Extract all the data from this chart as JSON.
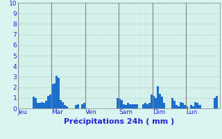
{
  "values": [
    0,
    0,
    0,
    0,
    0,
    0,
    0,
    1.1,
    1.0,
    0.5,
    0.5,
    0.6,
    0.5,
    0.7,
    1.2,
    1.3,
    2.3,
    2.4,
    3.1,
    2.9,
    0.8,
    0.6,
    0.3,
    0.2,
    0,
    0,
    0,
    0.3,
    0.4,
    0,
    0.4,
    0.5,
    0,
    0,
    0,
    0,
    0,
    0,
    0,
    0,
    0,
    0,
    0,
    0,
    0,
    0,
    0,
    1.0,
    0.9,
    0.8,
    0.4,
    0.3,
    0.5,
    0.4,
    0.4,
    0.4,
    0.4,
    0,
    0,
    0.4,
    0.5,
    0.4,
    0.5,
    1.3,
    1.2,
    1.0,
    2.1,
    1.4,
    1.1,
    0.5,
    0,
    0,
    0,
    1.0,
    0.7,
    0.3,
    0.2,
    0.6,
    0.5,
    0.3,
    0.2,
    0,
    0.3,
    0.2,
    0.6,
    0.5,
    0.3,
    0,
    0,
    0,
    0,
    0,
    0,
    1.0,
    1.2,
    0
  ],
  "bar_color": "#1e6fcc",
  "background_color": "#d8f5f0",
  "grid_color_h": "#b8d8d0",
  "grid_color_v": "#a8c8c0",
  "axis_label_color": "#2222cc",
  "tick_label_color": "#2222cc",
  "xlabel": "Précipitations 24h ( mm )",
  "ylim": [
    0,
    10
  ],
  "yticks": [
    0,
    1,
    2,
    3,
    4,
    5,
    6,
    7,
    8,
    9,
    10
  ],
  "day_labels": [
    "Jeu",
    "Mar",
    "Ven",
    "Sam",
    "Dim",
    "Lun"
  ],
  "day_line_color": "#808080",
  "n_bars": 96,
  "bars_per_day": 16,
  "tick_fontsize": 6.5,
  "label_fontsize": 8
}
